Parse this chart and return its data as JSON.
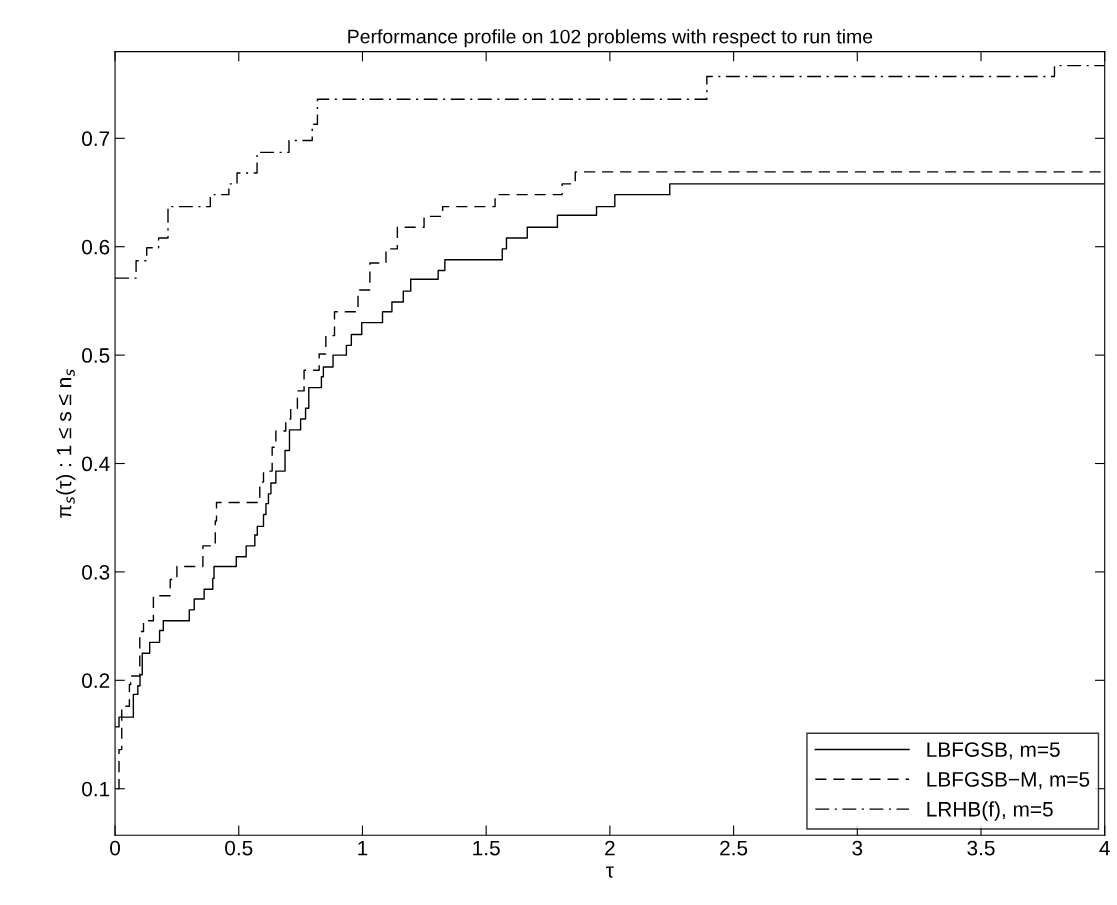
{
  "chart_data": {
    "type": "step",
    "title": "Performance profile on 102 problems with respect to run time",
    "xlabel": "τ",
    "ylabel": "π$_{s}$(τ) : 1 ≤ s ≤ n$_{s}$",
    "xlim": [
      0,
      4
    ],
    "ylim": [
      0.057,
      0.78
    ],
    "xticks": [
      0,
      0.5,
      1,
      1.5,
      2,
      2.5,
      3,
      3.5,
      4
    ],
    "yticks": [
      0.1,
      0.2,
      0.3,
      0.4,
      0.5,
      0.6,
      0.7
    ],
    "grid": false,
    "legend": "bottom right",
    "series": [
      {
        "name": "LBFGSB, m=5",
        "color": "#000000",
        "line_style": "solid",
        "x": [
          0,
          0.016,
          0.074,
          0.092,
          0.101,
          0.11,
          0.14,
          0.18,
          0.195,
          0.3,
          0.32,
          0.36,
          0.395,
          0.4,
          0.49,
          0.53,
          0.565,
          0.575,
          0.6,
          0.61,
          0.62,
          0.63,
          0.65,
          0.687,
          0.705,
          0.75,
          0.77,
          0.783,
          0.834,
          0.842,
          0.881,
          0.935,
          0.955,
          0.997,
          1.081,
          1.119,
          1.165,
          1.195,
          1.306,
          1.333,
          1.565,
          1.582,
          1.666,
          1.788,
          1.946,
          2.02,
          2.242,
          4
        ],
        "values": [
          0.157,
          0.166,
          0.187,
          0.195,
          0.205,
          0.225,
          0.235,
          0.246,
          0.255,
          0.265,
          0.275,
          0.284,
          0.294,
          0.305,
          0.314,
          0.324,
          0.334,
          0.342,
          0.353,
          0.363,
          0.372,
          0.382,
          0.393,
          0.412,
          0.431,
          0.441,
          0.451,
          0.47,
          0.48,
          0.489,
          0.5,
          0.509,
          0.519,
          0.53,
          0.54,
          0.549,
          0.559,
          0.57,
          0.578,
          0.588,
          0.598,
          0.608,
          0.618,
          0.629,
          0.637,
          0.648,
          0.658,
          0.658
        ]
      },
      {
        "name": "LBFGSB−M, m=5",
        "color": "#000000",
        "line_style": "dashed",
        "x": [
          0.01,
          0.016,
          0.027,
          0.058,
          0.063,
          0.1,
          0.115,
          0.155,
          0.223,
          0.25,
          0.355,
          0.405,
          0.41,
          0.585,
          0.6,
          0.635,
          0.65,
          0.69,
          0.71,
          0.737,
          0.764,
          0.825,
          0.852,
          0.887,
          0.982,
          1.03,
          1.095,
          1.141,
          1.249,
          1.324,
          1.536,
          1.807,
          1.86,
          4
        ],
        "values": [
          0.1,
          0.136,
          0.176,
          0.196,
          0.204,
          0.245,
          0.255,
          0.278,
          0.293,
          0.305,
          0.324,
          0.347,
          0.364,
          0.383,
          0.393,
          0.415,
          0.43,
          0.441,
          0.451,
          0.467,
          0.486,
          0.501,
          0.518,
          0.54,
          0.56,
          0.585,
          0.598,
          0.618,
          0.628,
          0.637,
          0.648,
          0.658,
          0.669,
          0.669
        ]
      },
      {
        "name": "LRHB(f), m=5",
        "color": "#000000",
        "line_style": "dashdot",
        "x": [
          0,
          0.085,
          0.128,
          0.176,
          0.214,
          0.385,
          0.46,
          0.493,
          0.574,
          0.703,
          0.797,
          0.818,
          2.392,
          3.797,
          4
        ],
        "values": [
          0.571,
          0.587,
          0.599,
          0.608,
          0.637,
          0.648,
          0.658,
          0.668,
          0.687,
          0.698,
          0.713,
          0.736,
          0.757,
          0.767,
          0.767
        ]
      }
    ]
  }
}
